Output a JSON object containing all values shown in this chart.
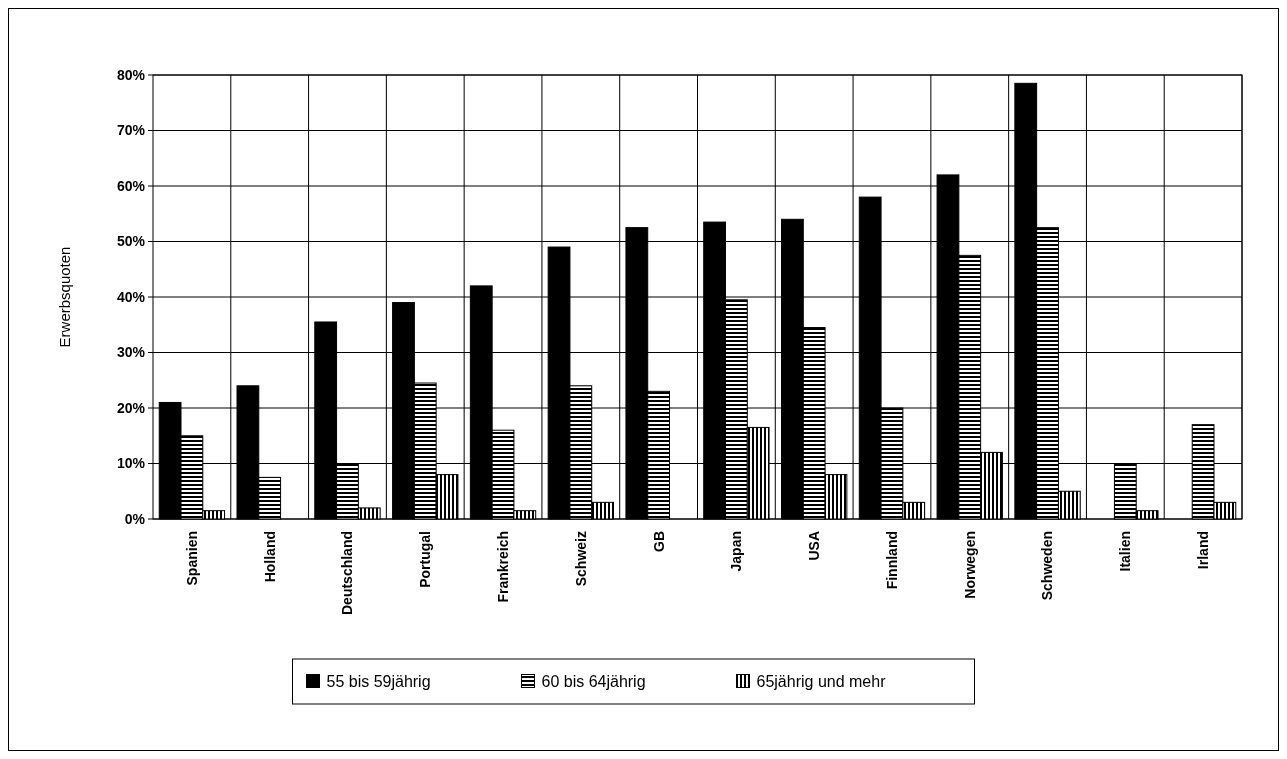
{
  "chart_data": {
    "type": "bar",
    "ylabel": "Erwerbsquoten",
    "categories": [
      "Spanien",
      "Holland",
      "Deutschland",
      "Portugal",
      "Frankreich",
      "Schweiz",
      "GB",
      "Japan",
      "USA",
      "Finnland",
      "Norwegen",
      "Schweden",
      "Italien",
      "Irland"
    ],
    "series": [
      {
        "name": "55 bis 59jährig",
        "color": "#000000",
        "values": [
          21,
          24,
          35.5,
          39,
          42,
          49,
          52.5,
          53.5,
          54,
          58,
          62,
          78.5,
          0,
          0
        ]
      },
      {
        "name": "60 bis 64jährig",
        "color": "#000000",
        "values": [
          15,
          7.5,
          10,
          24.5,
          16,
          24,
          23,
          39.5,
          34.5,
          20,
          47.5,
          52.5,
          10,
          17
        ]
      },
      {
        "name": "65jährig und mehr",
        "color": "#000000",
        "values": [
          1.5,
          0,
          2,
          8,
          1.5,
          3,
          0,
          16.5,
          8,
          3,
          12,
          5,
          1.5,
          3
        ]
      }
    ],
    "ylim": [
      0,
      80
    ],
    "yticks": [
      {
        "value": 0,
        "label": "0%"
      },
      {
        "value": 10,
        "label": "10%"
      },
      {
        "value": 20,
        "label": "20%"
      },
      {
        "value": 30,
        "label": "30%"
      },
      {
        "value": 40,
        "label": "40%"
      },
      {
        "value": 50,
        "label": "50%"
      },
      {
        "value": 60,
        "label": "60%"
      },
      {
        "value": 70,
        "label": "70%"
      },
      {
        "value": 80,
        "label": "80%"
      }
    ],
    "grid": true,
    "legend": "bottom"
  }
}
